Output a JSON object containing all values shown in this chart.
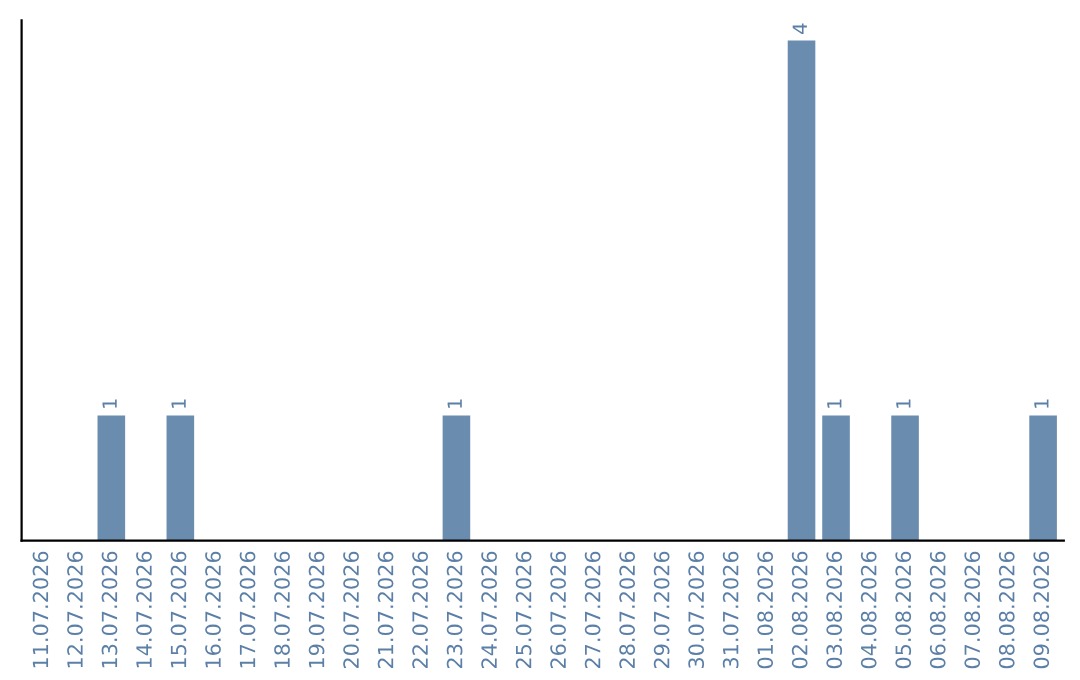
{
  "chart_data": {
    "type": "bar",
    "categories": [
      "11.07.2026",
      "12.07.2026",
      "13.07.2026",
      "14.07.2026",
      "15.07.2026",
      "16.07.2026",
      "17.07.2026",
      "18.07.2026",
      "19.07.2026",
      "20.07.2026",
      "21.07.2026",
      "22.07.2026",
      "23.07.2026",
      "24.07.2026",
      "25.07.2026",
      "26.07.2026",
      "27.07.2026",
      "28.07.2026",
      "29.07.2026",
      "30.07.2026",
      "31.07.2026",
      "01.08.2026",
      "02.08.2026",
      "03.08.2026",
      "04.08.2026",
      "05.08.2026",
      "06.08.2026",
      "07.08.2026",
      "08.08.2026",
      "09.08.2026"
    ],
    "values": [
      0,
      0,
      1,
      0,
      1,
      0,
      0,
      0,
      0,
      0,
      0,
      0,
      1,
      0,
      0,
      0,
      0,
      0,
      0,
      0,
      0,
      0,
      4,
      1,
      0,
      1,
      0,
      0,
      0,
      1
    ],
    "value_labels": [
      null,
      null,
      "1",
      null,
      "1",
      null,
      null,
      null,
      null,
      null,
      null,
      null,
      "1",
      null,
      null,
      null,
      null,
      null,
      null,
      null,
      null,
      null,
      "4",
      "1",
      null,
      "1",
      null,
      null,
      null,
      "1"
    ],
    "color": "#6a8caf",
    "tick_labels": "x",
    "grid": false
  }
}
